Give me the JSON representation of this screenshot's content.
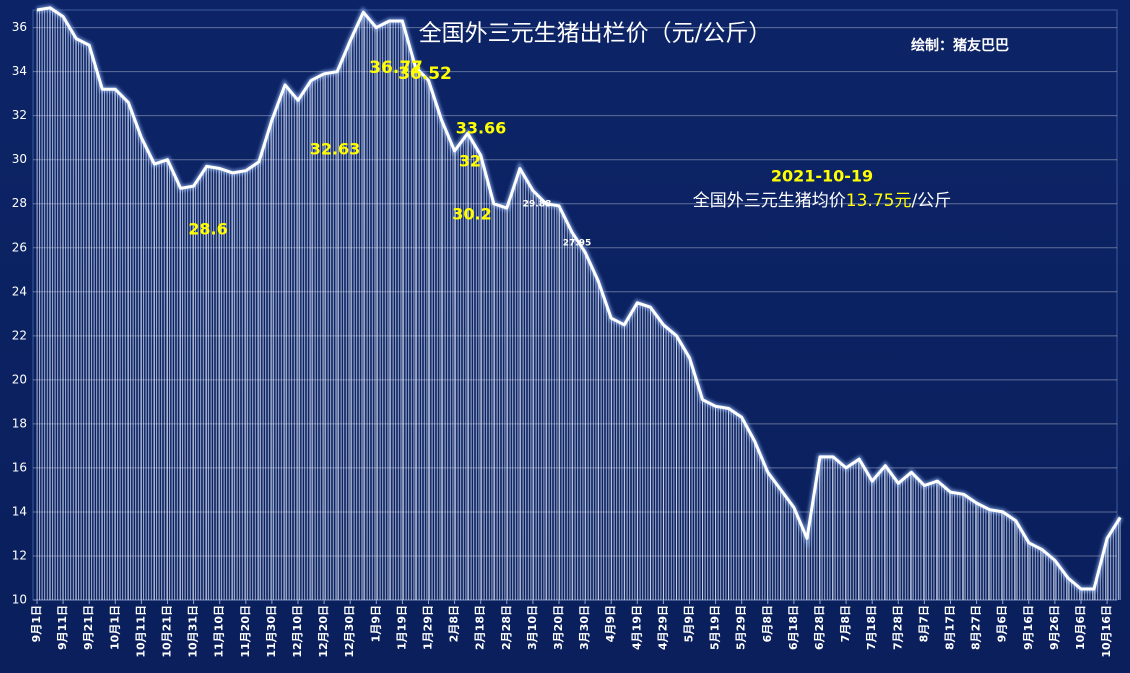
{
  "chart_data": {
    "type": "line",
    "title": "全国外三元生猪出栏价（元/公斤）",
    "credit": "绘制：猪友巴巴",
    "note_date": "2021-10-19",
    "note_text": "全国外三元生猪均价",
    "note_value": "13.75元",
    "note_unit": "/公斤",
    "categories": [
      "9月1日",
      null,
      "9月11日",
      null,
      "9月21日",
      null,
      "10月1日",
      null,
      "10月11日",
      null,
      "10月21日",
      null,
      "10月31日",
      null,
      "11月10日",
      null,
      "11月20日",
      null,
      "11月30日",
      null,
      "12月10日",
      null,
      "12月20日",
      null,
      "12月30日",
      null,
      "1月9日",
      null,
      "1月19日",
      null,
      "1月29日",
      null,
      "2月8日",
      null,
      "2月18日",
      null,
      "2月28日",
      null,
      "3月10日",
      null,
      "3月20日",
      null,
      "3月30日",
      null,
      "4月9日",
      null,
      "4月19日",
      null,
      "4月29日",
      null,
      "5月9日",
      null,
      "5月19日",
      null,
      "5月29日",
      null,
      "6月8日",
      null,
      "6月18日",
      null,
      "6月28日",
      null,
      "7月8日",
      null,
      "7月18日",
      null,
      "7月28日",
      null,
      "8月7日",
      null,
      "8月17日",
      null,
      "8月27日",
      null,
      "9月6日",
      null,
      "9月16日",
      null,
      "9月26日",
      null,
      "10月6日",
      null,
      "10月16日",
      null
    ],
    "series": [
      {
        "name": "全国外三元生猪出栏价",
        "color": "#ffffff",
        "values": [
          36.8,
          36.9,
          36.5,
          35.5,
          35.2,
          33.2,
          33.2,
          32.6,
          31.0,
          29.8,
          30.0,
          28.7,
          28.8,
          29.7,
          29.6,
          29.4,
          29.5,
          29.9,
          31.8,
          33.4,
          32.7,
          33.6,
          33.9,
          34.0,
          35.4,
          36.7,
          36.0,
          36.3,
          36.3,
          34.2,
          33.6,
          31.8,
          30.4,
          31.2,
          30.2,
          28.0,
          27.8,
          29.6,
          28.6,
          28.0,
          27.9,
          26.7,
          25.8,
          24.5,
          22.8,
          22.5,
          23.5,
          23.3,
          22.5,
          22.0,
          21.0,
          19.1,
          18.8,
          18.7,
          18.3,
          17.2,
          15.8,
          15.0,
          14.2,
          12.8,
          16.5,
          16.5,
          16.0,
          16.4,
          15.4,
          16.1,
          15.3,
          15.8,
          15.2,
          15.4,
          14.9,
          14.8,
          14.4,
          14.1,
          14.0,
          13.6,
          12.6,
          12.3,
          11.8,
          11.0,
          10.5,
          10.5,
          12.8,
          13.75
        ]
      }
    ],
    "annotations": [
      "36.77",
      "36.52",
      "32.63",
      "33.66",
      "32",
      "30.2",
      "28.6",
      "29.88",
      "27.95"
    ],
    "ylim": [
      10,
      36.8
    ],
    "yticks": [
      10,
      12,
      14,
      16,
      18,
      20,
      22,
      24,
      26,
      28,
      30,
      32,
      34,
      36
    ],
    "grid": true
  }
}
